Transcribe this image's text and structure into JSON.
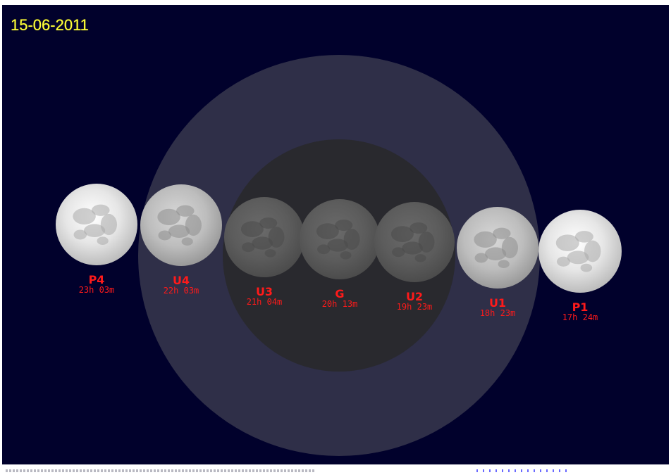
{
  "date": "15-06-2011",
  "colors": {
    "sky": "#01012c",
    "penumbra": "#2f2f48",
    "umbra": "#29292e",
    "label": "#ff1a1a",
    "date": "#ffff3c"
  },
  "moons": [
    {
      "id": "P4",
      "label": "P4",
      "time": "23h 03m",
      "shade": "full"
    },
    {
      "id": "U4",
      "label": "U4",
      "time": "22h 03m",
      "shade": "penumbral"
    },
    {
      "id": "U3",
      "label": "U3",
      "time": "21h 04m",
      "shade": "total"
    },
    {
      "id": "G",
      "label": "G",
      "time": "20h 13m",
      "shade": "total"
    },
    {
      "id": "U2",
      "label": "U2",
      "time": "19h 23m",
      "shade": "total"
    },
    {
      "id": "U1",
      "label": "U1",
      "time": "18h 23m",
      "shade": "penumbral"
    },
    {
      "id": "P1",
      "label": "P1",
      "time": "17h 24m",
      "shade": "full"
    }
  ]
}
